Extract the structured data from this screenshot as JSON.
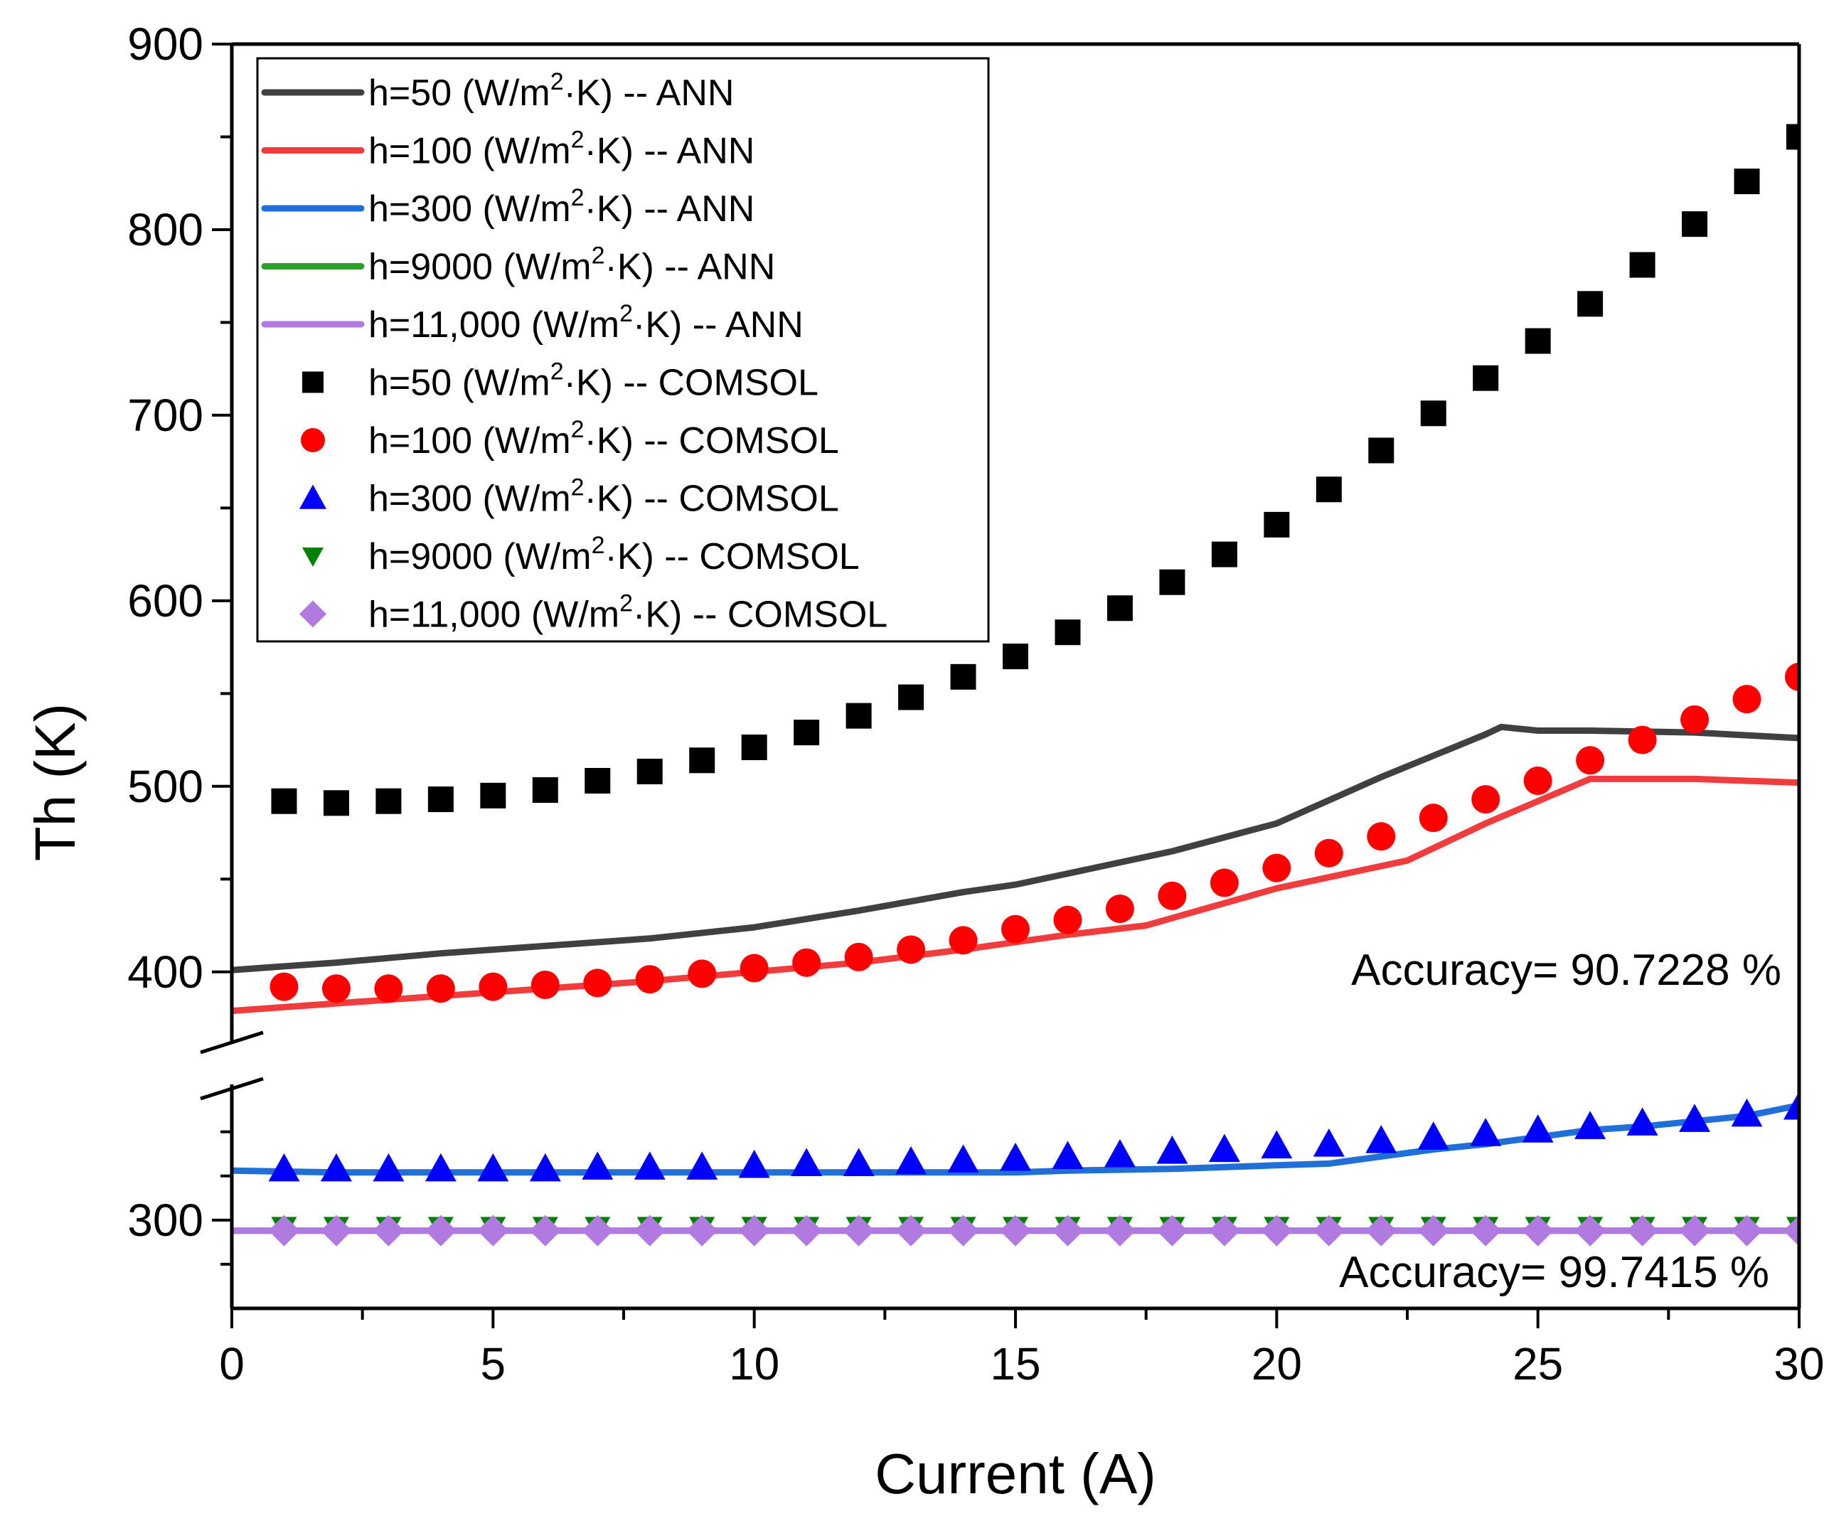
{
  "chart_data": {
    "type": "line",
    "xlabel": "Current (A)",
    "ylabel": "Th (K)",
    "xlim": [
      0,
      30
    ],
    "x_ticks": [
      0,
      5,
      10,
      15,
      20,
      25,
      30
    ],
    "ylim_upper": [
      375,
      900
    ],
    "ylim_lower": [
      250,
      370
    ],
    "y_ticks_upper": [
      400,
      500,
      600,
      700,
      800,
      900
    ],
    "y_ticks_lower": [
      300
    ],
    "broken_y_axis": true,
    "grid": false,
    "legend_placement": "top-left",
    "annotations": [
      {
        "text": "Accuracy= 90.7228 %",
        "panel": "upper"
      },
      {
        "text": "Accuracy= 99.7415 %",
        "panel": "lower"
      }
    ],
    "series": [
      {
        "name": "h=50 (W/m²·K) -- ANN",
        "legend_pre": "h=50 (W/m",
        "legend_post": "·K) -- ANN",
        "kind": "line",
        "color": "#404040",
        "panel": "upper",
        "x": [
          0,
          2,
          4,
          6,
          8,
          10,
          12,
          14,
          15,
          16,
          18,
          20,
          22,
          24,
          24.3,
          25,
          26,
          28,
          30
        ],
        "y": [
          401,
          405,
          410,
          414,
          418,
          424,
          433,
          443,
          447,
          453,
          465,
          480,
          505,
          528,
          532,
          530,
          530,
          529,
          526
        ]
      },
      {
        "name": "h=100 (W/m²·K) -- ANN",
        "legend_pre": "h=100 (W/m",
        "legend_post": "·K) -- ANN",
        "kind": "line",
        "color": "#f03c3c",
        "panel": "upper",
        "x": [
          0,
          2,
          4,
          6,
          8,
          10,
          12,
          14,
          16,
          17.5,
          20,
          22.5,
          24,
          26,
          28,
          30
        ],
        "y": [
          379,
          383,
          387,
          391,
          395,
          400,
          405,
          412,
          420,
          425,
          445,
          460,
          480,
          504,
          504,
          502
        ]
      },
      {
        "name": "h=300 (W/m²·K) -- ANN",
        "legend_pre": "h=300 (W/m",
        "legend_post": "·K) -- ANN",
        "kind": "line",
        "color": "#1f6fd6",
        "panel": "lower",
        "x": [
          0,
          2,
          4,
          6,
          8,
          10,
          12,
          14,
          15,
          16,
          18,
          20,
          21,
          22,
          23,
          24,
          25,
          26,
          27,
          28,
          29,
          30
        ],
        "y": [
          328,
          327,
          327,
          327,
          327,
          327,
          327,
          327,
          327,
          328,
          329,
          331,
          332,
          336,
          340,
          343,
          347,
          351,
          353,
          356,
          359,
          365
        ]
      },
      {
        "name": "h=9000 (W/m²·K) -- ANN",
        "legend_pre": "h=9000 (W/m",
        "legend_post": "·K) -- ANN",
        "kind": "line",
        "color": "#2ca02c",
        "panel": "lower",
        "x": [
          0,
          30
        ],
        "y": [
          294,
          294
        ]
      },
      {
        "name": "h=11,000 (W/m²·K) -- ANN",
        "legend_pre": "h=11,000 (W/m",
        "legend_post": "·K) -- ANN",
        "kind": "line",
        "color": "#b07ae0",
        "panel": "lower",
        "x": [
          0,
          30
        ],
        "y": [
          294,
          294
        ]
      },
      {
        "name": "h=50 (W/m²·K) -- COMSOL",
        "legend_pre": "h=50 (W/m",
        "legend_post": "·K) -- COMSOL",
        "kind": "marker",
        "marker": "square",
        "color": "#000000",
        "panel": "upper",
        "x": [
          1,
          2,
          3,
          4,
          5,
          6,
          7,
          8,
          9,
          10,
          11,
          12,
          13,
          14,
          15,
          16,
          17,
          18,
          19,
          20,
          21,
          22,
          23,
          24,
          25,
          26,
          27,
          28,
          29,
          30
        ],
        "y": [
          492,
          491,
          492,
          493,
          495,
          498,
          503,
          508,
          514,
          521,
          529,
          538,
          548,
          559,
          570,
          583,
          596,
          610,
          625,
          641,
          660,
          681,
          701,
          720,
          740,
          760,
          781,
          803,
          826,
          850
        ]
      },
      {
        "name": "h=100 (W/m²·K) -- COMSOL",
        "legend_pre": "h=100 (W/m",
        "legend_post": "·K) -- COMSOL",
        "kind": "marker",
        "marker": "circle",
        "color": "#ff0000",
        "panel": "upper",
        "x": [
          1,
          2,
          3,
          4,
          5,
          6,
          7,
          8,
          9,
          10,
          11,
          12,
          13,
          14,
          15,
          16,
          17,
          18,
          19,
          20,
          21,
          22,
          23,
          24,
          25,
          26,
          27,
          28,
          29,
          30
        ],
        "y": [
          392,
          391,
          391,
          391,
          392,
          393,
          394,
          396,
          399,
          402,
          405,
          408,
          412,
          417,
          423,
          428,
          434,
          441,
          448,
          456,
          464,
          473,
          483,
          493,
          503,
          514,
          525,
          536,
          547,
          559
        ]
      },
      {
        "name": "h=300 (W/m²·K) -- COMSOL",
        "legend_pre": "h=300 (W/m",
        "legend_post": "·K) -- COMSOL",
        "kind": "marker",
        "marker": "triangle-up",
        "color": "#0000ff",
        "panel": "lower",
        "x": [
          1,
          2,
          3,
          4,
          5,
          6,
          7,
          8,
          9,
          10,
          11,
          12,
          13,
          14,
          15,
          16,
          17,
          18,
          19,
          20,
          21,
          22,
          23,
          24,
          25,
          26,
          27,
          28,
          29,
          30
        ],
        "y": [
          329,
          329,
          329,
          329,
          329,
          329,
          330,
          330,
          330,
          331,
          332,
          332,
          333,
          334,
          335,
          336,
          337,
          339,
          340,
          342,
          343,
          345,
          347,
          349,
          351,
          353,
          355,
          357,
          360,
          364
        ]
      },
      {
        "name": "h=9000 (W/m²·K) -- COMSOL",
        "legend_pre": "h=9000 (W/m",
        "legend_post": "·K) -- COMSOL",
        "kind": "marker",
        "marker": "triangle-down",
        "color": "#008000",
        "panel": "lower",
        "x": [
          1,
          2,
          3,
          4,
          5,
          6,
          7,
          8,
          9,
          10,
          11,
          12,
          13,
          14,
          15,
          16,
          17,
          18,
          19,
          20,
          21,
          22,
          23,
          24,
          25,
          26,
          27,
          28,
          29,
          30
        ],
        "y": [
          296,
          296,
          296,
          296,
          296,
          296,
          296,
          296,
          296,
          296,
          296,
          296,
          296,
          296,
          296,
          296,
          296,
          296,
          296,
          296,
          296,
          296,
          296,
          296,
          296,
          296,
          296,
          296,
          296,
          296
        ]
      },
      {
        "name": "h=11,000 (W/m²·K) -- COMSOL",
        "legend_pre": "h=11,000 (W/m",
        "legend_post": "·K) -- COMSOL",
        "kind": "marker",
        "marker": "diamond",
        "color": "#b07ae0",
        "panel": "lower",
        "x": [
          1,
          2,
          3,
          4,
          5,
          6,
          7,
          8,
          9,
          10,
          11,
          12,
          13,
          14,
          15,
          16,
          17,
          18,
          19,
          20,
          21,
          22,
          23,
          24,
          25,
          26,
          27,
          28,
          29,
          30
        ],
        "y": [
          294,
          294,
          294,
          294,
          294,
          294,
          294,
          294,
          294,
          294,
          294,
          294,
          294,
          294,
          294,
          294,
          294,
          294,
          294,
          294,
          294,
          294,
          294,
          294,
          294,
          294,
          294,
          294,
          294,
          294
        ]
      }
    ]
  }
}
